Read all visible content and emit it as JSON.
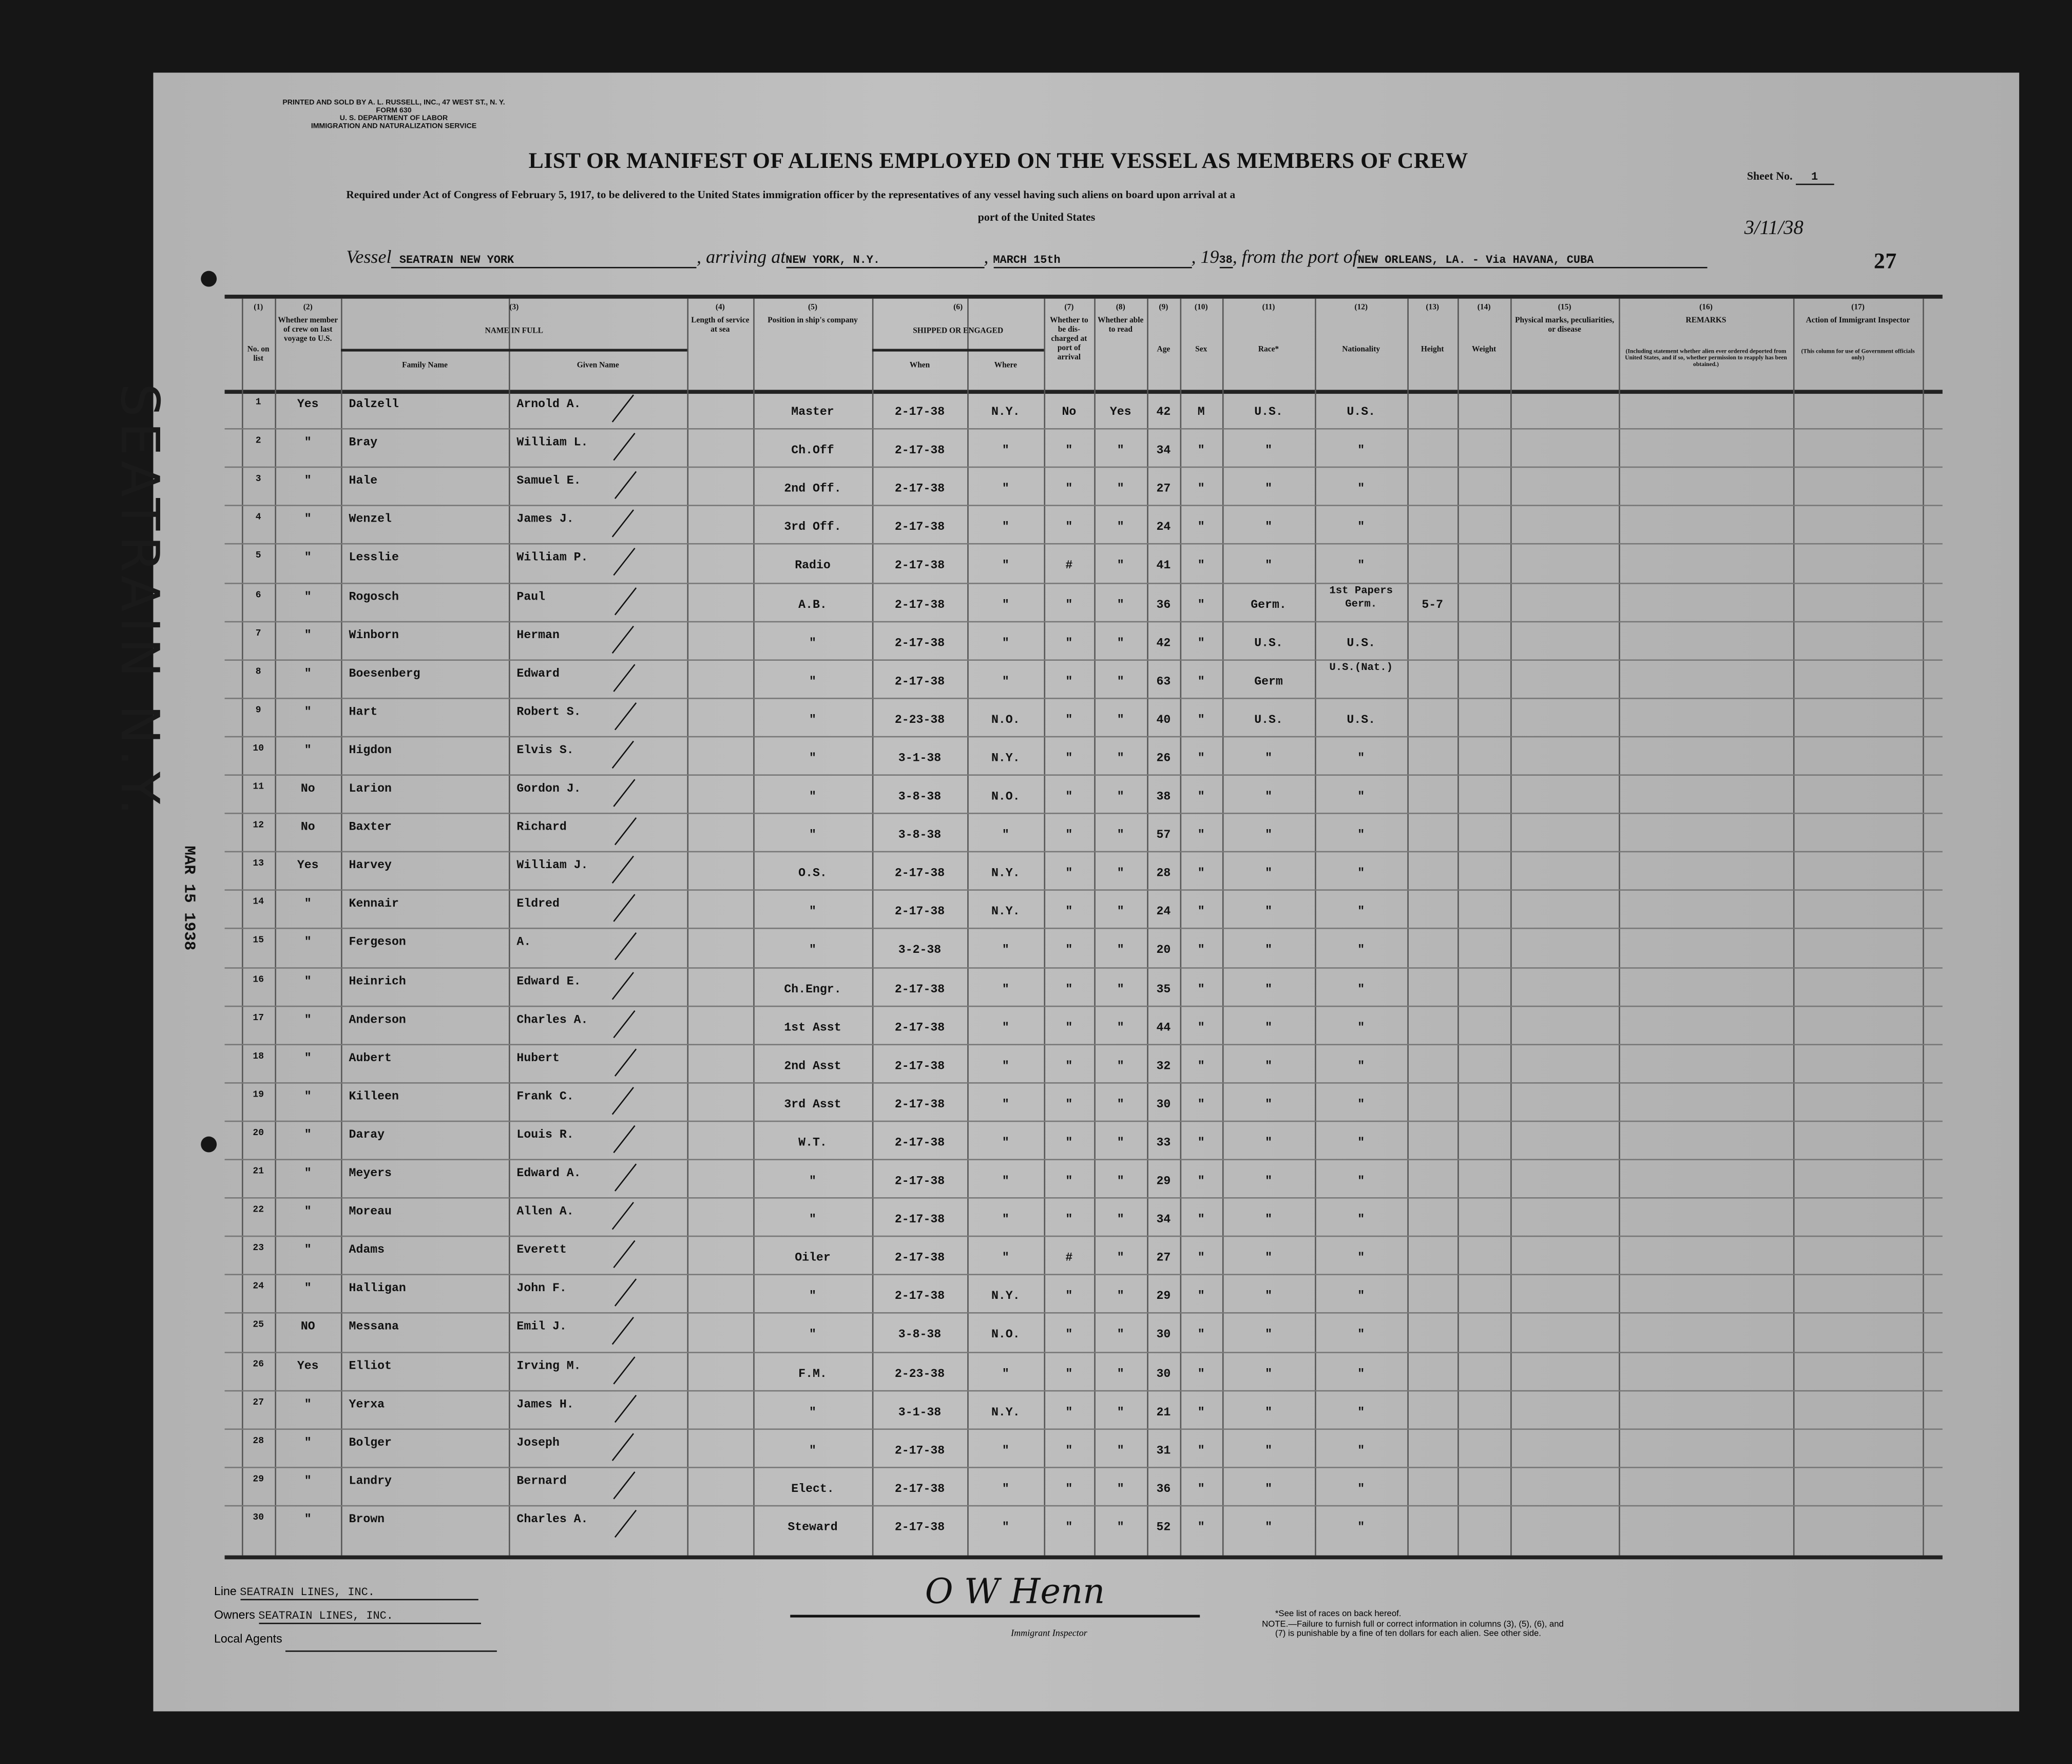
{
  "form": {
    "printer": "PRINTED AND SOLD BY A. L. RUSSELL, INC., 47 WEST ST., N. Y.",
    "form_no": "FORM 630",
    "department": "U. S. DEPARTMENT OF LABOR",
    "service": "IMMIGRATION AND NATURALIZATION SERVICE",
    "sheet_label": "Sheet No.",
    "sheet_no": "1",
    "title": "LIST OR MANIFEST OF ALIENS EMPLOYED ON THE VESSEL AS MEMBERS OF CREW",
    "subtitle_1": "Required under Act of Congress of February 5, 1917, to be delivered to the United States immigration officer by the representatives of any vessel having such aliens on board upon arrival at a",
    "subtitle_2": "port of the United States",
    "handwritten_date": "3/11/38",
    "page_number": "27"
  },
  "vessel": {
    "vessel_label": "Vessel",
    "vessel_name": "SEATRAIN NEW YORK",
    "arriving_label": ", arriving at",
    "arriving_port": "NEW YORK, N.Y.",
    "date": "MARCH 15th",
    "year_prefix": ", 19",
    "year": "38",
    "from_label": ", from the port of",
    "from_port": "NEW ORLEANS, LA. - Via HAVANA, CUBA"
  },
  "margin_stamp": {
    "vessel": "SEATRAIN N.Y.",
    "date": "MAR 15 1938"
  },
  "columns": [
    {
      "num": "(1)",
      "label": "No. on list"
    },
    {
      "num": "(2)",
      "label": "Whether member of crew on last voyage to U.S."
    },
    {
      "num": "(3)",
      "label": "NAME IN FULL",
      "sub": [
        "Family Name",
        "Given Name"
      ]
    },
    {
      "num": "(4)",
      "label": "Length of service at sea"
    },
    {
      "num": "(5)",
      "label": "Position in ship's company"
    },
    {
      "num": "(6)",
      "label": "SHIPPED OR ENGAGED",
      "sub": [
        "When",
        "Where"
      ]
    },
    {
      "num": "(7)",
      "label": "Whether to be dis-charged at port of arrival"
    },
    {
      "num": "(8)",
      "label": "Whether able to read"
    },
    {
      "num": "(9)",
      "label": "Age"
    },
    {
      "num": "(10)",
      "label": "Sex"
    },
    {
      "num": "(11)",
      "label": "Race*"
    },
    {
      "num": "(12)",
      "label": "Nationality"
    },
    {
      "num": "(13)",
      "label": "Height"
    },
    {
      "num": "(14)",
      "label": "Weight"
    },
    {
      "num": "(15)",
      "label": "Physical marks, peculiarities, or disease"
    },
    {
      "num": "(16)",
      "label": "REMARKS",
      "note": "(Including statement whether alien ever ordered deported from United States, and if so, whether permission to reapply has been obtained.)"
    },
    {
      "num": "(17)",
      "label": "Action of Immigrant Inspector",
      "note": "(This column for use of Government officials only)"
    }
  ],
  "rows": [
    [
      "1",
      "Yes",
      "Dalzell",
      "Arnold A.",
      "Master",
      "2-17-38",
      "N.Y.",
      "No",
      "Yes",
      "42",
      "M",
      "U.S.",
      "U.S.",
      ""
    ],
    [
      "2",
      "\"",
      "Bray",
      "William L.",
      "Ch.Off",
      "2-17-38",
      "\"",
      "\"",
      "\"",
      "34",
      "\"",
      "\"",
      "\"",
      ""
    ],
    [
      "3",
      "\"",
      "Hale",
      "Samuel E.",
      "2nd Off.",
      "2-17-38",
      "\"",
      "\"",
      "\"",
      "27",
      "\"",
      "\"",
      "\"",
      ""
    ],
    [
      "4",
      "\"",
      "Wenzel",
      "James J.",
      "3rd Off.",
      "2-17-38",
      "\"",
      "\"",
      "\"",
      "24",
      "\"",
      "\"",
      "\"",
      ""
    ],
    [
      "5",
      "\"",
      "Lesslie",
      "William P.",
      "Radio",
      "2-17-38",
      "\"",
      "#",
      "\"",
      "41",
      "\"",
      "\"",
      "\"",
      ""
    ],
    [
      "6",
      "\"",
      "Rogosch",
      "Paul",
      "A.B.",
      "2-17-38",
      "\"",
      "\"",
      "\"",
      "36",
      "\"",
      "Germ.",
      "1st Papers Germ.",
      "5-7"
    ],
    [
      "7",
      "\"",
      "Winborn",
      "Herman",
      "\"",
      "2-17-38",
      "\"",
      "\"",
      "\"",
      "42",
      "\"",
      "U.S.",
      "U.S.",
      ""
    ],
    [
      "8",
      "\"",
      "Boesenberg",
      "Edward",
      "\"",
      "2-17-38",
      "\"",
      "\"",
      "\"",
      "63",
      "\"",
      "Germ",
      "U.S.(Nat.)",
      ""
    ],
    [
      "9",
      "\"",
      "Hart",
      "Robert S.",
      "\"",
      "2-23-38",
      "N.O.",
      "\"",
      "\"",
      "40",
      "\"",
      "U.S.",
      "U.S.",
      ""
    ],
    [
      "10",
      "\"",
      "Higdon",
      "Elvis S.",
      "\"",
      "3-1-38",
      "N.Y.",
      "\"",
      "\"",
      "26",
      "\"",
      "\"",
      "\"",
      ""
    ],
    [
      "11",
      "No",
      "Larion",
      "Gordon J.",
      "\"",
      "3-8-38",
      "N.O.",
      "\"",
      "\"",
      "38",
      "\"",
      "\"",
      "\"",
      ""
    ],
    [
      "12",
      "No",
      "Baxter",
      "Richard",
      "\"",
      "3-8-38",
      "\"",
      "\"",
      "\"",
      "57",
      "\"",
      "\"",
      "\"",
      ""
    ],
    [
      "13",
      "Yes",
      "Harvey",
      "William J.",
      "O.S.",
      "2-17-38",
      "N.Y.",
      "\"",
      "\"",
      "28",
      "\"",
      "\"",
      "\"",
      ""
    ],
    [
      "14",
      "\"",
      "Kennair",
      "Eldred",
      "\"",
      "2-17-38",
      "N.Y.",
      "\"",
      "\"",
      "24",
      "\"",
      "\"",
      "\"",
      ""
    ],
    [
      "15",
      "\"",
      "Fergeson",
      "A.",
      "\"",
      "3-2-38",
      "\"",
      "\"",
      "\"",
      "20",
      "\"",
      "\"",
      "\"",
      ""
    ],
    [
      "16",
      "\"",
      "Heinrich",
      "Edward E.",
      "Ch.Engr.",
      "2-17-38",
      "\"",
      "\"",
      "\"",
      "35",
      "\"",
      "\"",
      "\"",
      ""
    ],
    [
      "17",
      "\"",
      "Anderson",
      "Charles A.",
      "1st Asst",
      "2-17-38",
      "\"",
      "\"",
      "\"",
      "44",
      "\"",
      "\"",
      "\"",
      ""
    ],
    [
      "18",
      "\"",
      "Aubert",
      "Hubert",
      "2nd Asst",
      "2-17-38",
      "\"",
      "\"",
      "\"",
      "32",
      "\"",
      "\"",
      "\"",
      ""
    ],
    [
      "19",
      "\"",
      "Killeen",
      "Frank C.",
      "3rd Asst",
      "2-17-38",
      "\"",
      "\"",
      "\"",
      "30",
      "\"",
      "\"",
      "\"",
      ""
    ],
    [
      "20",
      "\"",
      "Daray",
      "Louis R.",
      "W.T.",
      "2-17-38",
      "\"",
      "\"",
      "\"",
      "33",
      "\"",
      "\"",
      "\"",
      ""
    ],
    [
      "21",
      "\"",
      "Meyers",
      "Edward A.",
      "\"",
      "2-17-38",
      "\"",
      "\"",
      "\"",
      "29",
      "\"",
      "\"",
      "\"",
      ""
    ],
    [
      "22",
      "\"",
      "Moreau",
      "Allen A.",
      "\"",
      "2-17-38",
      "\"",
      "\"",
      "\"",
      "34",
      "\"",
      "\"",
      "\"",
      ""
    ],
    [
      "23",
      "\"",
      "Adams",
      "Everett",
      "Oiler",
      "2-17-38",
      "\"",
      "#",
      "\"",
      "27",
      "\"",
      "\"",
      "\"",
      ""
    ],
    [
      "24",
      "\"",
      "Halligan",
      "John F.",
      "\"",
      "2-17-38",
      "N.Y.",
      "\"",
      "\"",
      "29",
      "\"",
      "\"",
      "\"",
      ""
    ],
    [
      "25",
      "NO",
      "Messana",
      "Emil J.",
      "\"",
      "3-8-38",
      "N.O.",
      "\"",
      "\"",
      "30",
      "\"",
      "\"",
      "\"",
      ""
    ],
    [
      "26",
      "Yes",
      "Elliot",
      "Irving M.",
      "F.M.",
      "2-23-38",
      "\"",
      "\"",
      "\"",
      "30",
      "\"",
      "\"",
      "\"",
      ""
    ],
    [
      "27",
      "\"",
      "Yerxa",
      "James H.",
      "\"",
      "3-1-38",
      "N.Y.",
      "\"",
      "\"",
      "21",
      "\"",
      "\"",
      "\"",
      ""
    ],
    [
      "28",
      "\"",
      "Bolger",
      "Joseph",
      "\"",
      "2-17-38",
      "\"",
      "\"",
      "\"",
      "31",
      "\"",
      "\"",
      "\"",
      ""
    ],
    [
      "29",
      "\"",
      "Landry",
      "Bernard",
      "Elect.",
      "2-17-38",
      "\"",
      "\"",
      "\"",
      "36",
      "\"",
      "\"",
      "\"",
      ""
    ],
    [
      "30",
      "\"",
      "Brown",
      "Charles A.",
      "Steward",
      "2-17-38",
      "\"",
      "\"",
      "\"",
      "52",
      "\"",
      "\"",
      "\"",
      ""
    ]
  ],
  "footer": {
    "line_label": "Line",
    "line_value": "SEATRAIN LINES, INC.",
    "owners_label": "Owners",
    "owners_value": "SEATRAIN LINES, INC.",
    "agents_label": "Local Agents",
    "signature": "O W Henn",
    "inspector_label": "Immigrant Inspector",
    "note_1": "*See list of races on back hereof.",
    "note_2": "NOTE.—Failure to furnish full or correct information in columns (3), (5), (6), and",
    "note_3": "(7) is punishable by a fine of ten dollars for each alien. See other side."
  }
}
